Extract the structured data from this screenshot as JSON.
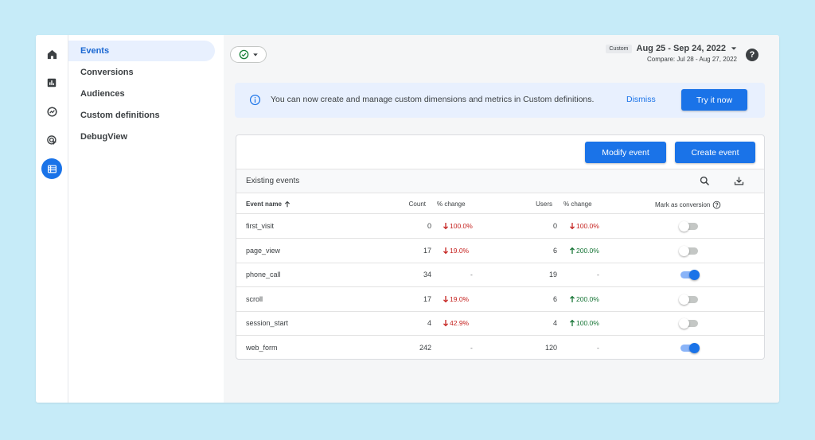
{
  "colors": {
    "accent": "#1a73e8",
    "negative": "#c5221f",
    "positive": "#137333",
    "background": "#c6ebf8"
  },
  "sidebar": {
    "icons": [
      "home-icon",
      "reports-icon",
      "explore-icon",
      "advertising-icon",
      "configure-icon"
    ],
    "items": [
      {
        "label": "Events",
        "active": true
      },
      {
        "label": "Conversions",
        "active": false
      },
      {
        "label": "Audiences",
        "active": false
      },
      {
        "label": "Custom definitions",
        "active": false
      },
      {
        "label": "DebugView",
        "active": false
      }
    ]
  },
  "header": {
    "custom_label": "Custom",
    "date_range": "Aug 25 - Sep 24, 2022",
    "compare": "Compare: Jul 28 - Aug 27, 2022",
    "help": "?"
  },
  "banner": {
    "text": "You can now create and manage custom dimensions and metrics in Custom definitions.",
    "dismiss": "Dismiss",
    "cta": "Try it now"
  },
  "toolbar": {
    "modify": "Modify event",
    "create": "Create event"
  },
  "table": {
    "title": "Existing events",
    "columns": {
      "name": "Event name",
      "count": "Count",
      "count_change": "% change",
      "users": "Users",
      "users_change": "% change",
      "conversion": "Mark as conversion"
    },
    "rows": [
      {
        "name": "first_visit",
        "count": "0",
        "count_change": "100.0%",
        "count_dir": "down",
        "users": "0",
        "users_change": "100.0%",
        "users_dir": "down",
        "conversion": false
      },
      {
        "name": "page_view",
        "count": "17",
        "count_change": "19.0%",
        "count_dir": "down",
        "users": "6",
        "users_change": "200.0%",
        "users_dir": "up",
        "conversion": false
      },
      {
        "name": "phone_call",
        "count": "34",
        "count_change": "-",
        "count_dir": "none",
        "users": "19",
        "users_change": "-",
        "users_dir": "none",
        "conversion": true
      },
      {
        "name": "scroll",
        "count": "17",
        "count_change": "19.0%",
        "count_dir": "down",
        "users": "6",
        "users_change": "200.0%",
        "users_dir": "up",
        "conversion": false
      },
      {
        "name": "session_start",
        "count": "4",
        "count_change": "42.9%",
        "count_dir": "down",
        "users": "4",
        "users_change": "100.0%",
        "users_dir": "up",
        "conversion": false
      },
      {
        "name": "web_form",
        "count": "242",
        "count_change": "-",
        "count_dir": "none",
        "users": "120",
        "users_change": "-",
        "users_dir": "none",
        "conversion": true
      }
    ]
  }
}
